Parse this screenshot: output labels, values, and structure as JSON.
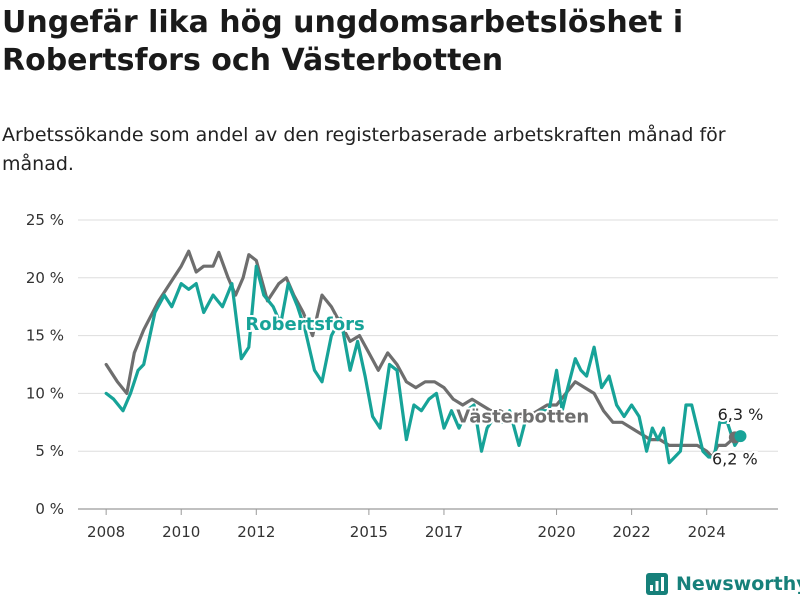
{
  "header": {
    "title": "Ungefär lika hög ungdomsarbetslöshet i Robertsfors och Västerbotten",
    "subtitle": "Arbetssökande som andel av den registerbaserade arbetskraften månad för månad."
  },
  "brand": {
    "name": "Newsworthy",
    "color": "#16807a"
  },
  "chart_data": {
    "type": "line",
    "title": "Ungefär lika hög ungdomsarbetslöshet i Robertsfors och Västerbotten",
    "subtitle": "Arbetssökande som andel av den registerbaserade arbetskraften månad för månad.",
    "ylim": [
      0,
      25
    ],
    "yticks": [
      0,
      5,
      10,
      15,
      20,
      25
    ],
    "ytick_labels": [
      "0 %",
      "5 %",
      "10 %",
      "15 %",
      "20 %",
      "25 %"
    ],
    "xticks": [
      2008,
      2010,
      2012,
      2015,
      2017,
      2020,
      2022,
      2024
    ],
    "xtick_labels": [
      "2008",
      "2010",
      "2012",
      "2015",
      "2017",
      "2020",
      "2022",
      "2024"
    ],
    "grid": true,
    "series": [
      {
        "name": "Västerbotten",
        "color": "#6e6e6e",
        "last_label": "6,2 %",
        "x": [
          2008.0,
          2008.3,
          2008.55,
          2008.75,
          2009.0,
          2009.4,
          2009.8,
          2010.0,
          2010.2,
          2010.4,
          2010.6,
          2010.85,
          2011.0,
          2011.25,
          2011.45,
          2011.65,
          2011.8,
          2012.0,
          2012.3,
          2012.6,
          2012.8,
          2013.0,
          2013.25,
          2013.5,
          2013.75,
          2014.0,
          2014.25,
          2014.5,
          2014.75,
          2015.0,
          2015.25,
          2015.5,
          2015.75,
          2016.0,
          2016.25,
          2016.5,
          2016.75,
          2017.0,
          2017.25,
          2017.5,
          2017.75,
          2018.0,
          2018.25,
          2018.5,
          2018.75,
          2019.0,
          2019.25,
          2019.5,
          2019.75,
          2020.0,
          2020.25,
          2020.5,
          2020.75,
          2021.0,
          2021.25,
          2021.5,
          2021.75,
          2022.0,
          2022.25,
          2022.5,
          2022.75,
          2023.0,
          2023.25,
          2023.5,
          2023.75,
          2024.0,
          2024.15,
          2024.3,
          2024.5,
          2024.75
        ],
        "values": [
          12.5,
          11.0,
          10.0,
          13.5,
          15.5,
          18.0,
          20.0,
          21.0,
          22.3,
          20.5,
          21.0,
          21.0,
          22.2,
          20.0,
          18.5,
          20.0,
          22.0,
          21.5,
          18.0,
          19.5,
          20.0,
          18.5,
          17.0,
          15.0,
          18.5,
          17.5,
          16.0,
          14.5,
          15.0,
          13.5,
          12.0,
          13.5,
          12.5,
          11.0,
          10.5,
          11.0,
          11.0,
          10.5,
          9.5,
          9.0,
          9.5,
          9.0,
          8.5,
          8.5,
          8.0,
          8.0,
          8.0,
          8.5,
          9.0,
          9.0,
          10.0,
          11.0,
          10.5,
          10.0,
          8.5,
          7.5,
          7.5,
          7.0,
          6.5,
          6.0,
          6.0,
          5.5,
          5.5,
          5.5,
          5.5,
          5.0,
          4.5,
          5.5,
          5.5,
          6.2
        ]
      },
      {
        "name": "Robertsfors",
        "color": "#17a398",
        "last_label": "6,3 %",
        "x": [
          2008.0,
          2008.2,
          2008.45,
          2008.65,
          2008.85,
          2009.0,
          2009.3,
          2009.55,
          2009.75,
          2010.0,
          2010.2,
          2010.4,
          2010.6,
          2010.85,
          2011.1,
          2011.35,
          2011.6,
          2011.8,
          2012.0,
          2012.2,
          2012.45,
          2012.65,
          2012.85,
          2013.1,
          2013.3,
          2013.55,
          2013.75,
          2014.0,
          2014.25,
          2014.5,
          2014.7,
          2014.9,
          2015.1,
          2015.3,
          2015.55,
          2015.75,
          2016.0,
          2016.2,
          2016.4,
          2016.6,
          2016.8,
          2017.0,
          2017.2,
          2017.4,
          2017.6,
          2017.8,
          2018.0,
          2018.15,
          2018.35,
          2018.55,
          2018.75,
          2019.0,
          2019.2,
          2019.4,
          2019.6,
          2019.8,
          2020.0,
          2020.15,
          2020.3,
          2020.5,
          2020.65,
          2020.8,
          2021.0,
          2021.2,
          2021.4,
          2021.6,
          2021.8,
          2022.0,
          2022.2,
          2022.4,
          2022.55,
          2022.7,
          2022.85,
          2023.0,
          2023.15,
          2023.3,
          2023.45,
          2023.6,
          2023.75,
          2023.9,
          2024.05,
          2024.2,
          2024.35,
          2024.55,
          2024.75,
          2024.9
        ],
        "values": [
          10.0,
          9.5,
          8.5,
          10.0,
          12.0,
          12.5,
          17.0,
          18.5,
          17.5,
          19.5,
          19.0,
          19.5,
          17.0,
          18.5,
          17.5,
          19.5,
          13.0,
          14.0,
          21.0,
          18.5,
          17.5,
          16.0,
          19.5,
          17.5,
          15.5,
          12.0,
          11.0,
          15.0,
          16.5,
          12.0,
          14.5,
          11.5,
          8.0,
          7.0,
          12.5,
          12.0,
          6.0,
          9.0,
          8.5,
          9.5,
          10.0,
          7.0,
          8.5,
          7.0,
          8.5,
          9.0,
          5.0,
          7.0,
          8.0,
          7.5,
          8.5,
          5.5,
          8.0,
          8.0,
          8.5,
          8.5,
          12.0,
          8.5,
          10.5,
          13.0,
          12.0,
          11.5,
          14.0,
          10.5,
          11.5,
          9.0,
          8.0,
          9.0,
          8.0,
          5.0,
          7.0,
          6.0,
          7.0,
          4.0,
          4.5,
          5.0,
          9.0,
          9.0,
          7.0,
          5.0,
          4.5,
          4.5,
          7.5,
          7.5,
          5.5,
          6.3
        ]
      }
    ],
    "annotations": [
      {
        "text": "Robertsfors",
        "series": "Robertsfors",
        "x": 2013.3,
        "y": 15.5
      },
      {
        "text": "Västerbotten",
        "series": "Västerbotten",
        "x": 2019.1,
        "y": 7.5
      }
    ]
  }
}
